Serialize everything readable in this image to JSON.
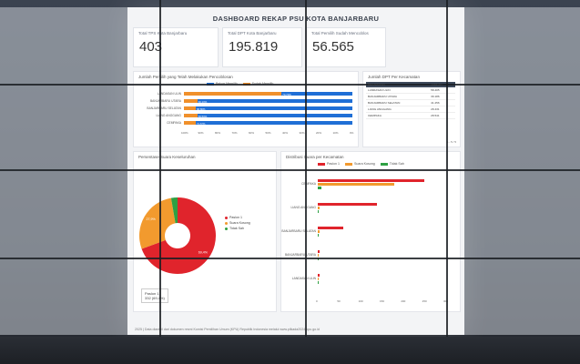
{
  "dashboard": {
    "title": "DASHBOARD REKAP PSU KOTA BANJARBARU",
    "footer": "2025 | Data diambil dari dokumen resmi Komisi Pemilihan Umum (KPU) Republik Indonesia melalui www.pilkada2024.kpu.go.id"
  },
  "cards": [
    {
      "label": "Total TPS Kota Banjarbaru",
      "value": "403"
    },
    {
      "label": "Total DPT Kota Banjarbaru",
      "value": "195.819"
    },
    {
      "label": "Total Pemilih Sudah Mencoblos",
      "value": "56.565"
    }
  ],
  "participation": {
    "title": "Jumlah Pemilih yang Telah Melakukan Pencoblosan",
    "legend": [
      "Belum Memilih",
      "Sudah Memilih"
    ],
    "colors": {
      "belum": "#1f6fd6",
      "sudah": "#f0902b"
    },
    "categories": [
      "LANDASAN ULIN",
      "BANJARBARU UTARA",
      "BANJARBARU SELATAN",
      "LIANG ANGGANG",
      "CEMPAKA"
    ],
    "sudah_pct": [
      58,
      8,
      7,
      8,
      7
    ],
    "sudah_label": "70,70%",
    "belum_labels": [
      "",
      "60,10%",
      "68,80%",
      "56,50%",
      "71,67%"
    ],
    "ticks": [
      "100%",
      "90%",
      "80%",
      "70%",
      "60%",
      "50%",
      "40%",
      "30%",
      "20%",
      "10%",
      "0%"
    ]
  },
  "dpt_table": {
    "title": "Jumlah DPT Per Kecamatan",
    "headers": [
      "KECAMATAN",
      "JUMLAH"
    ],
    "rows": [
      [
        "LANDASAN ULIN",
        "58.405"
      ],
      [
        "BANJARBARU UTARA",
        "39.186"
      ],
      [
        "BANJARBARU SELATAN",
        "41.256"
      ],
      [
        "LIANG ANGGANG",
        "28.431"
      ],
      [
        "CEMPAKA",
        "28.541"
      ]
    ],
    "pager": "1 - 5 / 5"
  },
  "pie": {
    "title": "Persentase Suara Keseluruhan",
    "legend": [
      "Paslon 1",
      "Suara Kosong",
      "Tidak Sah"
    ],
    "colors": [
      "#e0242c",
      "#f29a2e",
      "#2ea043"
    ],
    "values": [
      69.4,
      27.9,
      2.7
    ],
    "labels": [
      "69,4%",
      "27,9%",
      ""
    ],
    "tooltip_name": "Paslon 1",
    "tooltip_value": "332 (69,4%)"
  },
  "district_chart": {
    "title": "Distribusi Suara per Kecamatan",
    "legend": [
      "Paslon 1",
      "Suara Kosong",
      "Tidak Sah"
    ],
    "categories": [
      "CEMPAKA",
      "LIANG ANGGANG",
      "BANJARBARU SELATAN",
      "BANJARBARU UTARA",
      "LANDASAN ULIN"
    ],
    "series": [
      {
        "name": "Paslon 1",
        "values": [
          250,
          140,
          60,
          5,
          5
        ]
      },
      {
        "name": "Suara Kosong",
        "values": [
          180,
          5,
          5,
          2,
          2
        ]
      },
      {
        "name": "Tidak Sah",
        "values": [
          8,
          2,
          2,
          1,
          1
        ]
      }
    ],
    "ticks": [
      "0",
      "50",
      "100",
      "150",
      "200",
      "250",
      "300"
    ]
  }
}
